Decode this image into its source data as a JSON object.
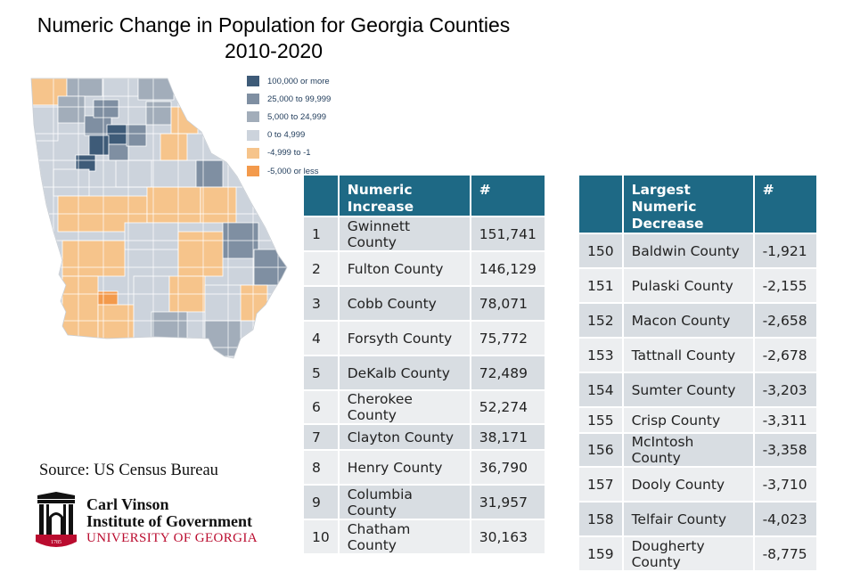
{
  "title": {
    "line1": "Numeric Change in Population for Georgia Counties",
    "line2": "2010-2020"
  },
  "legend": [
    {
      "label": "100,000 or more",
      "color": "#3e5b78"
    },
    {
      "label": "25,000 to 99,999",
      "color": "#7f8fa2"
    },
    {
      "label": "5,000 to 24,999",
      "color": "#a2adba"
    },
    {
      "label": "0 to 4,999",
      "color": "#ccd3dc"
    },
    {
      "label": "-4,999 to -1",
      "color": "#f6c48b"
    },
    {
      "label": "-5,000 or less",
      "color": "#f39a4c"
    }
  ],
  "increase_table": {
    "headers": [
      "",
      "Numeric Increase",
      "#"
    ],
    "rows": [
      [
        "1",
        "Gwinnett County",
        "151,741"
      ],
      [
        "2",
        "Fulton County",
        "146,129"
      ],
      [
        "3",
        "Cobb County",
        "78,071"
      ],
      [
        "4",
        "Forsyth County",
        "75,772"
      ],
      [
        "5",
        "DeKalb County",
        "72,489"
      ],
      [
        "6",
        "Cherokee County",
        "52,274"
      ],
      [
        "7",
        "Clayton County",
        "38,171"
      ],
      [
        "8",
        "Henry County",
        "36,790"
      ],
      [
        "9",
        "Columbia County",
        "31,957"
      ],
      [
        "10",
        "Chatham County",
        "30,163"
      ]
    ]
  },
  "decrease_table": {
    "headers": [
      "",
      "Largest Numeric Decrease",
      "#"
    ],
    "rows": [
      [
        "150",
        "Baldwin County",
        "-1,921"
      ],
      [
        "151",
        "Pulaski County",
        "-2,155"
      ],
      [
        "152",
        "Macon County",
        "-2,658"
      ],
      [
        "153",
        "Tattnall County",
        "-2,678"
      ],
      [
        "154",
        "Sumter County",
        "-3,203"
      ],
      [
        "155",
        "Crisp County",
        "-3,311"
      ],
      [
        "156",
        "McIntosh County",
        "-3,358"
      ],
      [
        "157",
        "Dooly County",
        "-3,710"
      ],
      [
        "158",
        "Telfair County",
        "-4,023"
      ],
      [
        "159",
        "Dougherty County",
        "-8,775"
      ]
    ]
  },
  "source": "Source: US Census Bureau",
  "org": {
    "line1": "Carl Vinson",
    "line2": "Institute of Government",
    "line3": "UNIVERSITY OF GEORGIA",
    "year": "1785",
    "color": "#ba0c2f"
  }
}
